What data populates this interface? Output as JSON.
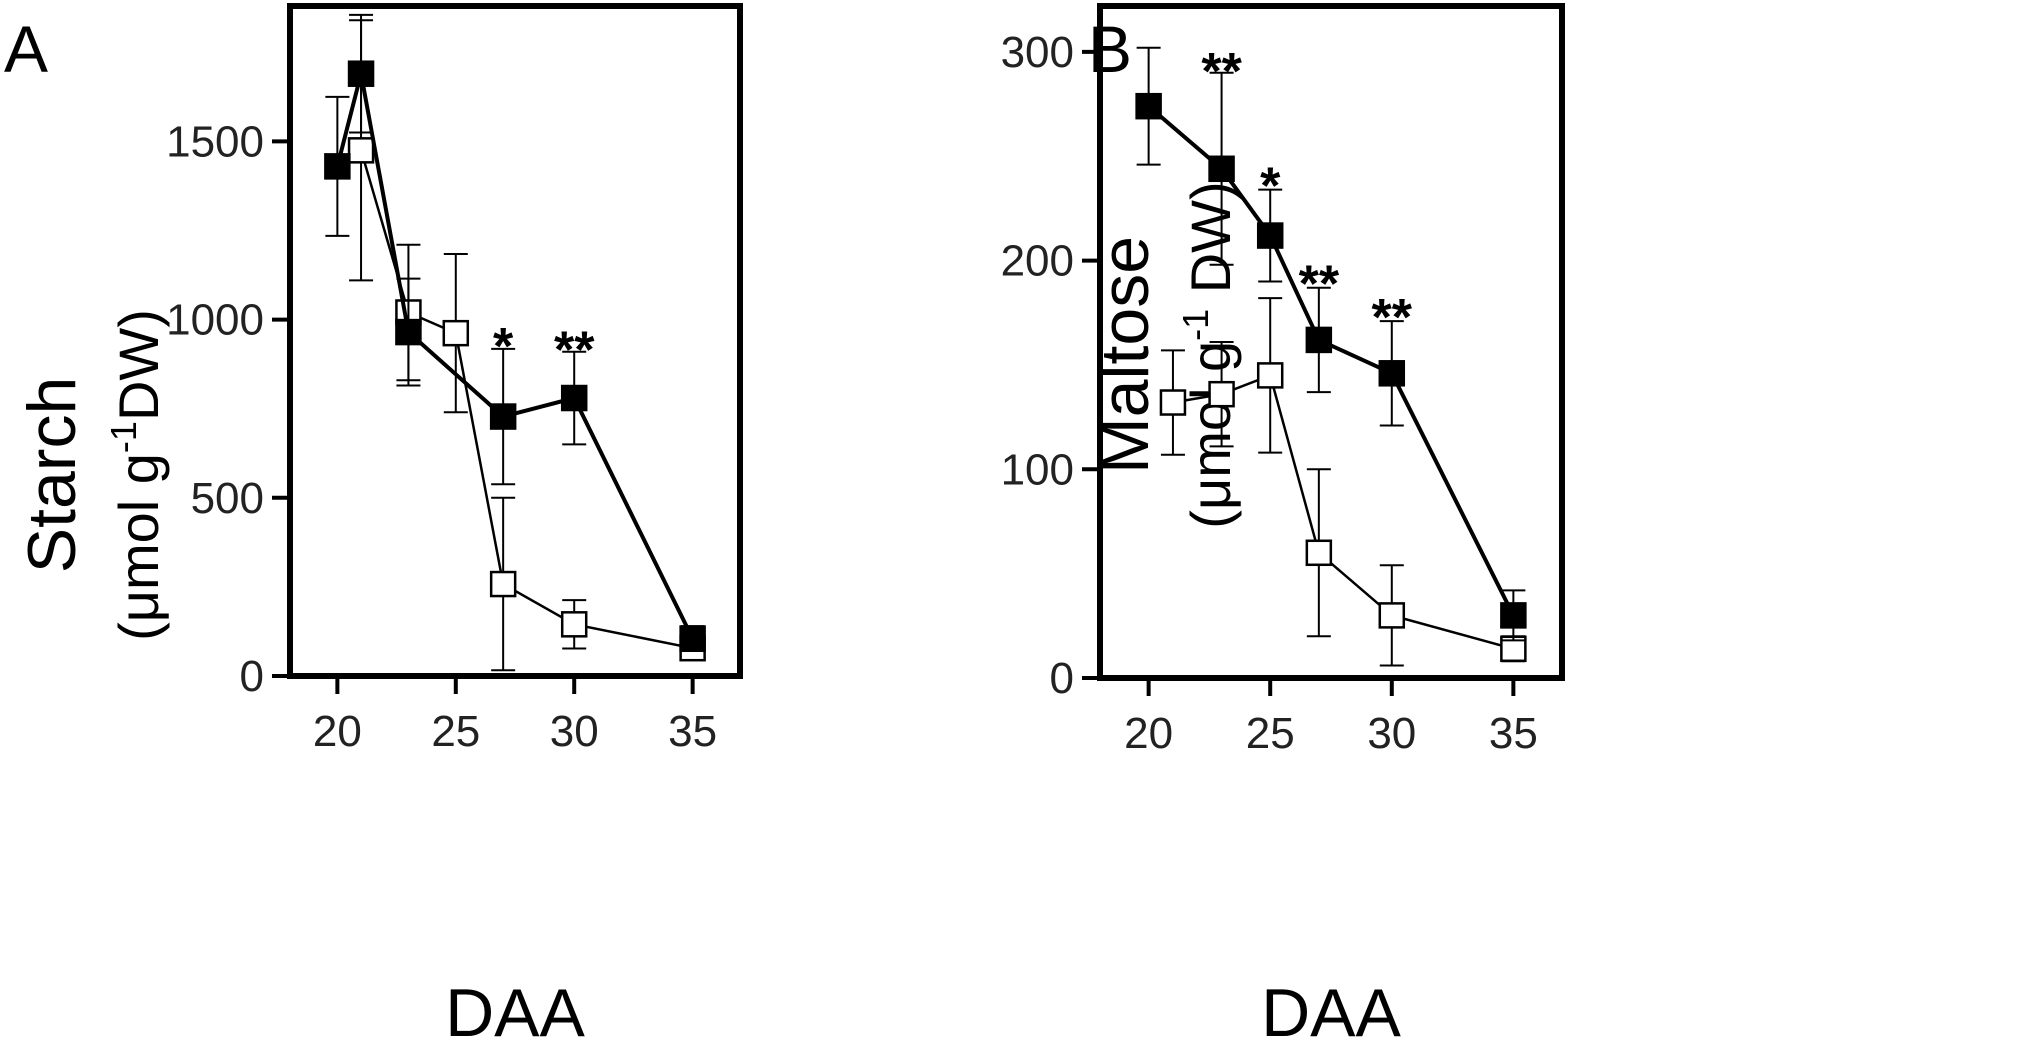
{
  "chart_data": [
    {
      "panel": "A",
      "type": "line",
      "xlabel": "DAA",
      "ylabel": "Starch",
      "ylabel_unit": {
        "open": "(",
        "mu": "μ",
        "pre": "mol g",
        "sup": "-1",
        "post": "DW)"
      },
      "xlim": [
        18,
        37
      ],
      "ylim": [
        0,
        1880
      ],
      "xticks": [
        "20",
        "25",
        "30",
        "35"
      ],
      "yticks": [
        "0",
        "500",
        "1000",
        "1500"
      ],
      "grid": false,
      "series": [
        {
          "style": "filled-square",
          "x": [
            20,
            21,
            23,
            27,
            30,
            35
          ],
          "y": [
            1430,
            1690,
            965,
            728,
            780,
            105
          ],
          "err": [
            195,
            165,
            150,
            190,
            130,
            35
          ]
        },
        {
          "style": "open-square",
          "x": [
            21,
            23,
            25,
            27,
            30,
            35
          ],
          "y": [
            1475,
            1020,
            962,
            258,
            145,
            78
          ],
          "err": [
            365,
            190,
            222,
            242,
            68,
            30
          ]
        }
      ],
      "annotations": [
        {
          "x": 27,
          "y": 920,
          "text": "*"
        },
        {
          "x": 30,
          "y": 910,
          "text": "**"
        }
      ]
    },
    {
      "panel": "B",
      "type": "line",
      "xlabel": "DAA",
      "ylabel": "Maltose",
      "ylabel_unit": {
        "open": "(",
        "mu": "μ",
        "pre": "mol g",
        "sup": "-1",
        "post": " DW)"
      },
      "xlim": [
        18,
        37
      ],
      "ylim": [
        0,
        322
      ],
      "xticks": [
        "20",
        "25",
        "30",
        "35"
      ],
      "yticks": [
        "0",
        "100",
        "200",
        "300"
      ],
      "grid": false,
      "series": [
        {
          "style": "filled-square",
          "x": [
            20,
            23,
            25,
            27,
            30,
            35
          ],
          "y": [
            274,
            244,
            212,
            162,
            146,
            30
          ],
          "err": [
            28,
            46,
            22,
            25,
            25,
            12
          ]
        },
        {
          "style": "open-square",
          "x": [
            21,
            23,
            25,
            27,
            30,
            35
          ],
          "y": [
            132,
            136,
            145,
            60,
            30,
            14
          ],
          "err": [
            25,
            25,
            37,
            40,
            24,
            6
          ]
        }
      ],
      "annotations": [
        {
          "x": 23,
          "y": 290,
          "text": "**"
        },
        {
          "x": 25,
          "y": 235,
          "text": "*"
        },
        {
          "x": 27,
          "y": 188,
          "text": "**"
        },
        {
          "x": 30,
          "y": 172,
          "text": "**"
        }
      ]
    }
  ]
}
